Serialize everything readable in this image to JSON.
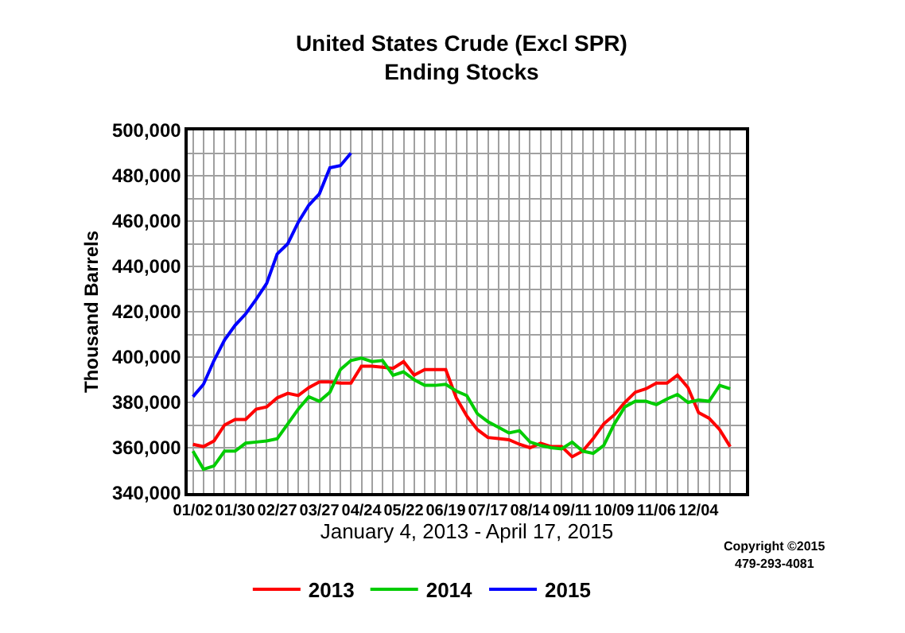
{
  "chart_data": {
    "type": "line",
    "title": "United States Crude (Excl SPR)\nEnding Stocks",
    "xlabel": "January 4, 2013 - April 17, 2015",
    "ylabel": "Thousand Barrels",
    "categories": [
      "01/02",
      null,
      null,
      null,
      "01/30",
      null,
      null,
      null,
      "02/27",
      null,
      null,
      null,
      "03/27",
      null,
      null,
      null,
      "04/24",
      null,
      null,
      null,
      "05/22",
      null,
      null,
      null,
      "06/19",
      null,
      null,
      null,
      "07/17",
      null,
      null,
      null,
      "08/14",
      null,
      null,
      null,
      "09/11",
      null,
      null,
      null,
      "10/09",
      null,
      null,
      null,
      "11/06",
      null,
      null,
      null,
      "12/04",
      null,
      null,
      null
    ],
    "series": [
      {
        "name": "2013",
        "color": "#ff0000",
        "values": [
          361500,
          360500,
          363000,
          370000,
          372500,
          372500,
          377000,
          378000,
          382000,
          384000,
          383000,
          386500,
          389000,
          389000,
          388500,
          388500,
          396000,
          396000,
          395500,
          395000,
          398000,
          392000,
          394500,
          394500,
          394500,
          382000,
          374000,
          368000,
          364500,
          364000,
          363500,
          361500,
          360000,
          362000,
          360500,
          360500,
          356000,
          358500,
          364000,
          370500,
          374500,
          380000,
          384500,
          386000,
          388500,
          388500,
          392000,
          386500,
          375500,
          373000,
          368000,
          360500
        ]
      },
      {
        "name": "2014",
        "color": "#00cc00",
        "values": [
          358500,
          350500,
          352000,
          358500,
          358500,
          362000,
          362500,
          363000,
          364000,
          370500,
          377000,
          382500,
          380500,
          384500,
          394500,
          398500,
          399500,
          398000,
          398500,
          392000,
          393500,
          390000,
          387500,
          387500,
          388000,
          385000,
          383000,
          375000,
          371500,
          369000,
          366500,
          367500,
          362500,
          361000,
          360000,
          359500,
          362500,
          358500,
          357500,
          361000,
          370500,
          378000,
          380500,
          380500,
          379000,
          381500,
          383500,
          380000,
          381000,
          380500,
          387500,
          386000
        ]
      },
      {
        "name": "2015",
        "color": "#0000ff",
        "values": [
          382500,
          388000,
          398500,
          407500,
          414000,
          419000,
          425500,
          432500,
          445500,
          450000,
          459500,
          467000,
          472000,
          483500,
          484500,
          490000,
          null,
          null,
          null,
          null,
          null,
          null,
          null,
          null,
          null,
          null,
          null,
          null,
          null,
          null,
          null,
          null,
          null,
          null,
          null,
          null,
          null,
          null,
          null,
          null,
          null,
          null,
          null,
          null,
          null,
          null,
          null,
          null,
          null,
          null,
          null,
          null
        ]
      }
    ],
    "ylim": [
      340000,
      500000
    ],
    "yticks": [
      {
        "value": 340000,
        "label": "340,000"
      },
      {
        "value": 350000,
        "label": null
      },
      {
        "value": 360000,
        "label": "360,000"
      },
      {
        "value": 370000,
        "label": null
      },
      {
        "value": 380000,
        "label": "380,000"
      },
      {
        "value": 390000,
        "label": null
      },
      {
        "value": 400000,
        "label": "400,000"
      },
      {
        "value": 410000,
        "label": null
      },
      {
        "value": 420000,
        "label": "420,000"
      },
      {
        "value": 430000,
        "label": null
      },
      {
        "value": 440000,
        "label": "440,000"
      },
      {
        "value": 450000,
        "label": null
      },
      {
        "value": 460000,
        "label": "460,000"
      },
      {
        "value": 470000,
        "label": null
      },
      {
        "value": 480000,
        "label": "480,000"
      },
      {
        "value": 490000,
        "label": null
      },
      {
        "value": 500000,
        "label": "500,000"
      }
    ],
    "grid": true,
    "legend": "bottom",
    "marker": "none",
    "line_style": "solid",
    "annotations": [
      "Copyright ©2015",
      "479-293-4081"
    ]
  }
}
